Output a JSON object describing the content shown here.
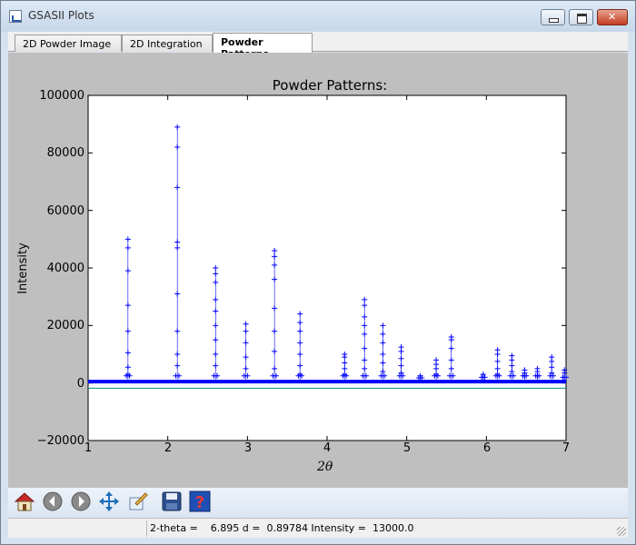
{
  "window": {
    "title": "GSASII Plots"
  },
  "tabs": [
    {
      "label": "2D Powder Image"
    },
    {
      "label": "2D Integration"
    },
    {
      "label": "Powder Patterns",
      "active": true
    }
  ],
  "chart_data": {
    "type": "scatter",
    "title": "Powder Patterns:",
    "xlabel": "2θ",
    "ylabel": "Intensity",
    "xlim": [
      1,
      7
    ],
    "ylim": [
      -20000,
      100000
    ],
    "xticks": [
      "1",
      "2",
      "3",
      "4",
      "5",
      "6",
      "7"
    ],
    "yticks": [
      "100000",
      "80000",
      "60000",
      "40000",
      "20000",
      "0",
      "−20000"
    ],
    "marker_color": "#0000ff",
    "difference_line_color": "#008b8b",
    "background_level": 500,
    "difference_level": -1800,
    "peaks": [
      {
        "x": 1.5,
        "values": [
          50000,
          47000,
          39000,
          27000,
          18000,
          10500,
          5500,
          3000
        ]
      },
      {
        "x": 2.12,
        "values": [
          89000,
          82000,
          68000,
          49000,
          47000,
          31000,
          18000,
          10000,
          6000
        ]
      },
      {
        "x": 2.6,
        "values": [
          40000,
          38000,
          35000,
          29000,
          25000,
          20000,
          15000,
          10000,
          6000
        ]
      },
      {
        "x": 2.98,
        "values": [
          20500,
          18000,
          14000,
          9000,
          5000
        ]
      },
      {
        "x": 3.34,
        "values": [
          46000,
          44000,
          41000,
          36000,
          26000,
          18000,
          11000,
          5000
        ]
      },
      {
        "x": 3.66,
        "values": [
          24000,
          21000,
          18000,
          14000,
          10000,
          6000,
          3000
        ]
      },
      {
        "x": 4.22,
        "values": [
          10000,
          9000,
          7000,
          5000,
          3000
        ]
      },
      {
        "x": 4.47,
        "values": [
          29000,
          27000,
          23000,
          20000,
          17000,
          12000,
          8000,
          5000
        ]
      },
      {
        "x": 4.7,
        "values": [
          20000,
          17000,
          14000,
          10000,
          7000,
          4000
        ]
      },
      {
        "x": 4.93,
        "values": [
          12500,
          11000,
          8500,
          6000,
          3500
        ]
      },
      {
        "x": 5.17,
        "values": [
          2500,
          1800
        ]
      },
      {
        "x": 5.37,
        "values": [
          8000,
          6500,
          5000,
          3000
        ]
      },
      {
        "x": 5.56,
        "values": [
          16000,
          15000,
          12000,
          8000,
          5000
        ]
      },
      {
        "x": 5.96,
        "values": [
          3000,
          2000
        ]
      },
      {
        "x": 6.14,
        "values": [
          11500,
          10000,
          7500,
          5000,
          3000
        ]
      },
      {
        "x": 6.32,
        "values": [
          9500,
          8000,
          6000,
          4000
        ]
      },
      {
        "x": 6.48,
        "values": [
          4500,
          3500,
          2500
        ]
      },
      {
        "x": 6.64,
        "values": [
          5000,
          4000,
          2500
        ]
      },
      {
        "x": 6.82,
        "values": [
          9000,
          7500,
          5500,
          3500
        ]
      },
      {
        "x": 6.98,
        "values": [
          4500,
          3500,
          2000
        ]
      }
    ]
  },
  "toolbar": {
    "tools": [
      {
        "name": "home-icon"
      },
      {
        "name": "back-arrow-icon"
      },
      {
        "name": "forward-arrow-icon"
      },
      {
        "name": "pan-icon"
      },
      {
        "name": "subplot-config-icon"
      },
      {
        "name": "save-icon"
      },
      {
        "name": "help-icon"
      }
    ]
  },
  "status": {
    "text": "2-theta =    6.895 d =  0.89784 Intensity =  13000.0"
  }
}
